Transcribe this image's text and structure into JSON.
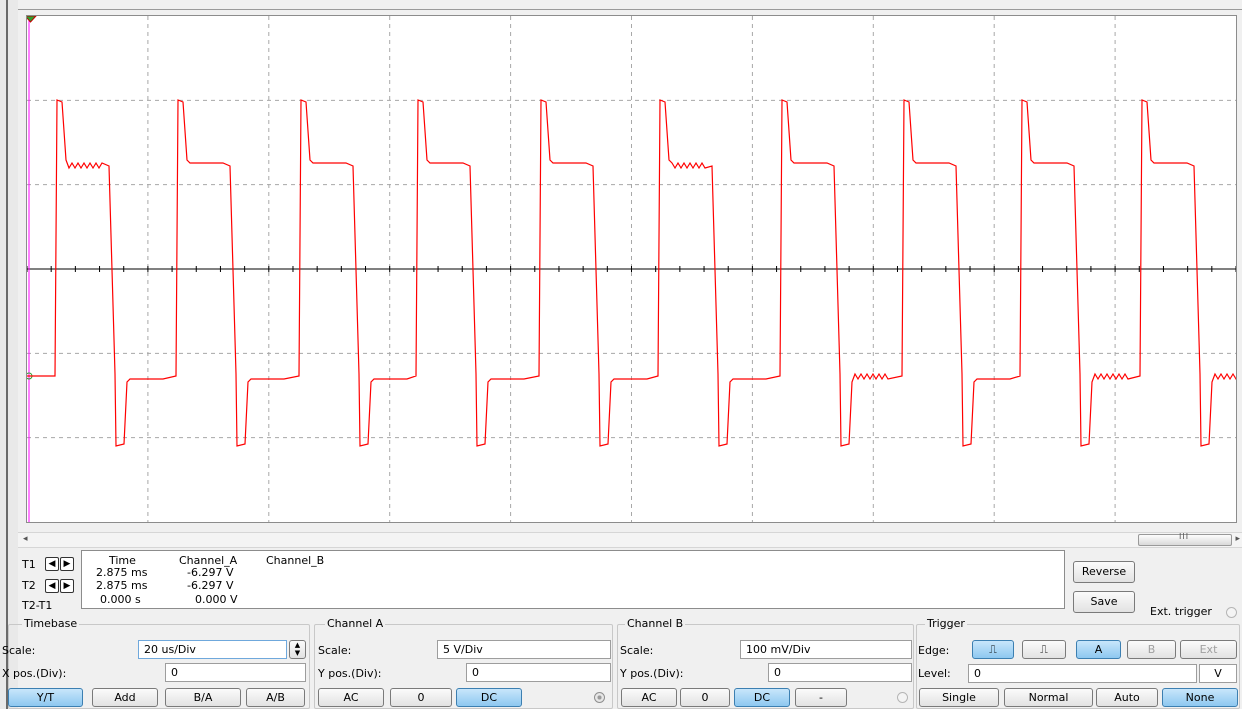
{
  "scope": {
    "channel_a_color": "#ff0000",
    "axis_color": "#000000",
    "cursor_color": "#ff00ff",
    "grid_color": "#a8a8a8"
  },
  "scrollbar": {
    "grip": "III"
  },
  "cursors": {
    "t1_label": "T1",
    "t2_label": "T2",
    "diff_label": "T2-T1",
    "left_arrow_icon": "arrow-left",
    "right_arrow_icon": "arrow-right"
  },
  "readout": {
    "headers": {
      "time": "Time",
      "channel_a": "Channel_A",
      "channel_b": "Channel_B"
    },
    "t1": {
      "time": "2.875 ms",
      "channel_a": "-6.297 V"
    },
    "t2": {
      "time": "2.875 ms",
      "channel_a": "-6.297 V"
    },
    "diff": {
      "time": "0.000 s",
      "channel_a": "0.000 V"
    }
  },
  "actions": {
    "reverse": "Reverse",
    "save": "Save",
    "ext_trigger": "Ext. trigger"
  },
  "timebase": {
    "title": "Timebase",
    "scale_label": "Scale:",
    "scale_value": "20 us/Div",
    "xpos_label": "X pos.(Div):",
    "xpos_value": "0",
    "modes": [
      "Y/T",
      "Add",
      "B/A",
      "A/B"
    ],
    "active_mode": "Y/T"
  },
  "channel_a": {
    "title": "Channel A",
    "scale_label": "Scale:",
    "scale_value": "5  V/Div",
    "ypos_label": "Y pos.(Div):",
    "ypos_value": "0",
    "coupling": [
      "AC",
      "0",
      "DC"
    ],
    "active_coupling": "DC"
  },
  "channel_b": {
    "title": "Channel B",
    "scale_label": "Scale:",
    "scale_value": "100 mV/Div",
    "ypos_label": "Y pos.(Div):",
    "ypos_value": "0",
    "coupling": [
      "AC",
      "0",
      "DC",
      "-"
    ],
    "active_coupling": "DC"
  },
  "trigger": {
    "title": "Trigger",
    "edge_label": "Edge:",
    "falling_edge_icon": "falling-edge",
    "rising_edge_icon": "rising-edge",
    "sources": [
      "A",
      "B",
      "Ext"
    ],
    "active_source": "A",
    "level_label": "Level:",
    "level_value": "0",
    "level_unit": "V",
    "modes": [
      "Single",
      "Normal",
      "Auto",
      "None"
    ],
    "active_mode": "None"
  }
}
